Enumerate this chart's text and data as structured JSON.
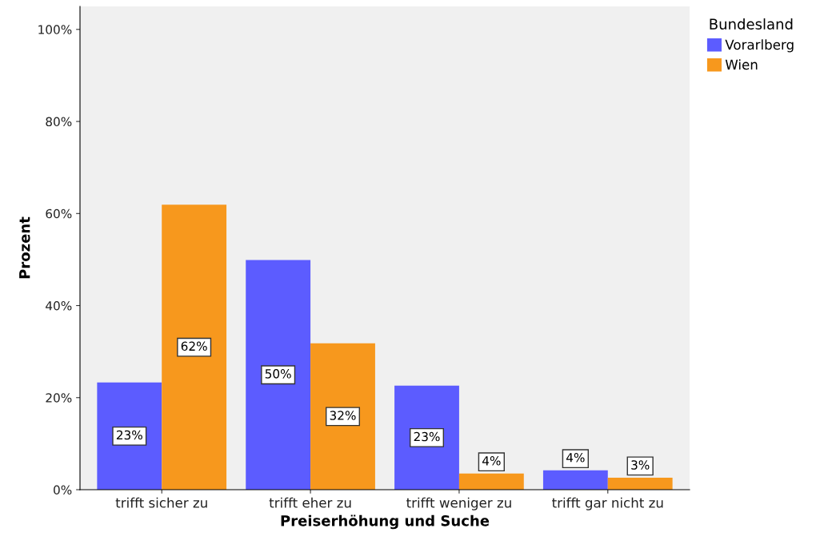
{
  "chart_data": {
    "type": "bar",
    "xlabel": "Preiserhöhung und Suche",
    "ylabel": "Prozent",
    "legend_title": "Bundesland",
    "categories": [
      "trifft sicher zu",
      "trifft eher zu",
      "trifft weniger zu",
      "trifft gar nicht zu"
    ],
    "series": [
      {
        "name": "Vorarlberg",
        "color": "#5c5cff",
        "values": [
          23.3,
          49.9,
          22.6,
          4.2
        ],
        "value_labels": [
          "23%",
          "50%",
          "23%",
          "4%"
        ]
      },
      {
        "name": "Wien",
        "color": "#f7981d",
        "values": [
          61.9,
          31.8,
          3.5,
          2.6
        ],
        "value_labels": [
          "62%",
          "32%",
          "4%",
          "3%"
        ]
      }
    ],
    "ylim": [
      0,
      105
    ],
    "yticks": [
      {
        "value": 0,
        "label": "0%"
      },
      {
        "value": 20,
        "label": "20%"
      },
      {
        "value": 40,
        "label": "40%"
      },
      {
        "value": 60,
        "label": "60%"
      },
      {
        "value": 80,
        "label": "80%"
      },
      {
        "value": 100,
        "label": "100%"
      }
    ],
    "grid": false,
    "legend": "top right"
  }
}
